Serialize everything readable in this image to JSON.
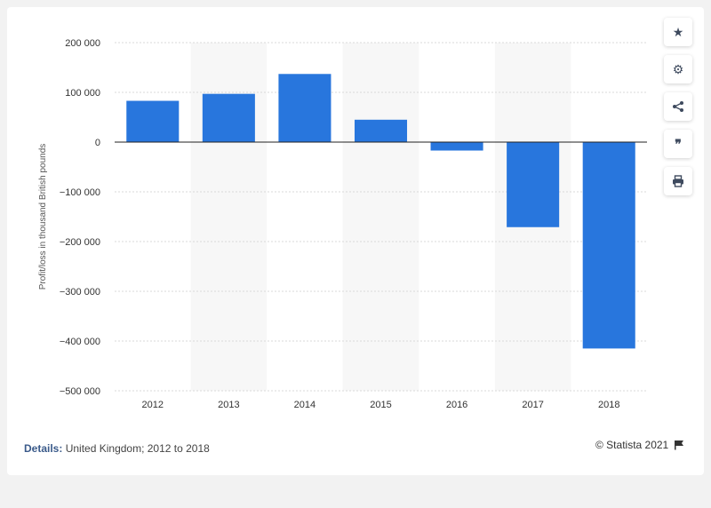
{
  "chart_data": {
    "type": "bar",
    "categories": [
      "2012",
      "2013",
      "2014",
      "2015",
      "2016",
      "2017",
      "2018"
    ],
    "values": [
      83000,
      97000,
      137000,
      45000,
      -17000,
      -171000,
      -415000
    ],
    "ylabel": "Profit/loss in thousand British pounds",
    "ylim": [
      -500000,
      200000
    ],
    "yticks": [
      200000,
      100000,
      0,
      -100000,
      -200000,
      -300000,
      -400000,
      -500000
    ],
    "ytick_labels": [
      "200 000",
      "100 000",
      "0",
      "−100 000",
      "−200 000",
      "−300 000",
      "−400 000",
      "−500 000"
    ],
    "bar_color": "#2876dd",
    "grid": true
  },
  "footer": {
    "details_label": "Details:",
    "details_text": "United Kingdom; 2012 to 2018",
    "credit": "© Statista 2021"
  },
  "tools": [
    {
      "name": "star-icon",
      "glyph": "★"
    },
    {
      "name": "gear-icon",
      "glyph": "⚙"
    },
    {
      "name": "share-icon",
      "glyph": "⮕"
    },
    {
      "name": "quote-icon",
      "glyph": "❞"
    },
    {
      "name": "print-icon",
      "glyph": "⎙"
    }
  ]
}
